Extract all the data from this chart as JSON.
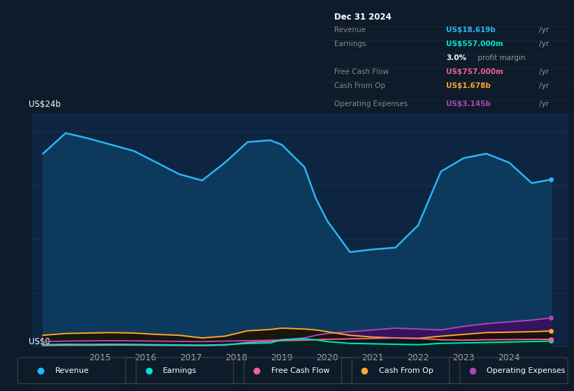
{
  "background_color": "#0d1b2a",
  "plot_bg_color": "#0d2540",
  "ylabel_top": "US$24b",
  "ylabel_bottom": "US$0",
  "x_years": [
    2013.75,
    2014.25,
    2014.75,
    2015.25,
    2015.75,
    2016.25,
    2016.75,
    2017.25,
    2017.75,
    2018.25,
    2018.75,
    2019.0,
    2019.5,
    2019.75,
    2020.0,
    2020.5,
    2021.0,
    2021.5,
    2022.0,
    2022.5,
    2023.0,
    2023.5,
    2024.0,
    2024.5,
    2024.92
  ],
  "revenue": [
    21.5,
    23.8,
    23.2,
    22.5,
    21.8,
    20.5,
    19.2,
    18.5,
    20.5,
    22.8,
    23.0,
    22.5,
    20.0,
    16.5,
    14.0,
    10.5,
    10.8,
    11.0,
    13.5,
    19.5,
    21.0,
    21.5,
    20.5,
    18.2,
    18.619
  ],
  "earnings": [
    0.15,
    0.2,
    0.18,
    0.2,
    0.18,
    0.15,
    0.12,
    0.1,
    0.15,
    0.3,
    0.35,
    0.7,
    0.8,
    0.7,
    0.5,
    0.3,
    0.25,
    0.2,
    0.15,
    0.3,
    0.35,
    0.4,
    0.45,
    0.5,
    0.557
  ],
  "free_cash_flow": [
    0.05,
    0.08,
    0.08,
    0.1,
    0.1,
    0.08,
    0.07,
    0.05,
    0.1,
    0.4,
    0.55,
    0.6,
    0.65,
    0.7,
    0.75,
    0.8,
    0.85,
    0.9,
    0.85,
    0.7,
    0.65,
    0.7,
    0.72,
    0.74,
    0.757
  ],
  "cash_from_op": [
    1.2,
    1.4,
    1.45,
    1.5,
    1.45,
    1.3,
    1.2,
    0.9,
    1.1,
    1.7,
    1.85,
    2.0,
    1.9,
    1.8,
    1.6,
    1.2,
    1.0,
    0.9,
    0.85,
    1.1,
    1.3,
    1.5,
    1.55,
    1.6,
    1.678
  ],
  "operating_expenses": [
    0.5,
    0.55,
    0.58,
    0.6,
    0.58,
    0.55,
    0.52,
    0.5,
    0.55,
    0.6,
    0.65,
    0.7,
    0.9,
    1.2,
    1.4,
    1.6,
    1.8,
    2.0,
    1.9,
    1.8,
    2.2,
    2.5,
    2.7,
    2.9,
    3.145
  ],
  "revenue_color": "#29b6f6",
  "earnings_color": "#00e5cc",
  "free_cash_flow_color": "#f06292",
  "cash_from_op_color": "#ffa726",
  "operating_expenses_color": "#ab47bc",
  "revenue_fill_color": "#0d3a5c",
  "op_exp_fill_color": "#3a1060",
  "cash_op_fill_color": "#2a1800",
  "fcf_fill_color": "#002a20",
  "earnings_fill_color": "#003028",
  "grid_color": "#1e3a5f",
  "text_color": "#aaaaaa",
  "xlim": [
    2013.5,
    2025.3
  ],
  "ylim": [
    0,
    26
  ],
  "x_ticks": [
    2015,
    2016,
    2017,
    2018,
    2019,
    2020,
    2021,
    2022,
    2023,
    2024
  ],
  "info_rows": [
    {
      "label": "Revenue",
      "value": "US$18.619b",
      "suffix": "/yr",
      "color": "#29b6f6"
    },
    {
      "label": "Earnings",
      "value": "US$557.000m",
      "suffix": "/yr",
      "color": "#00e5cc"
    },
    {
      "label": "",
      "value": "3.0%",
      "suffix": " profit margin",
      "color": "#ffffff"
    },
    {
      "label": "Free Cash Flow",
      "value": "US$757.000m",
      "suffix": "/yr",
      "color": "#f06292"
    },
    {
      "label": "Cash From Op",
      "value": "US$1.678b",
      "suffix": "/yr",
      "color": "#ffa726"
    },
    {
      "label": "Operating Expenses",
      "value": "US$3.145b",
      "suffix": "/yr",
      "color": "#ab47bc"
    }
  ],
  "legend_items": [
    {
      "label": "Revenue",
      "color": "#29b6f6"
    },
    {
      "label": "Earnings",
      "color": "#00e5cc"
    },
    {
      "label": "Free Cash Flow",
      "color": "#f06292"
    },
    {
      "label": "Cash From Op",
      "color": "#ffa726"
    },
    {
      "label": "Operating Expenses",
      "color": "#ab47bc"
    }
  ]
}
